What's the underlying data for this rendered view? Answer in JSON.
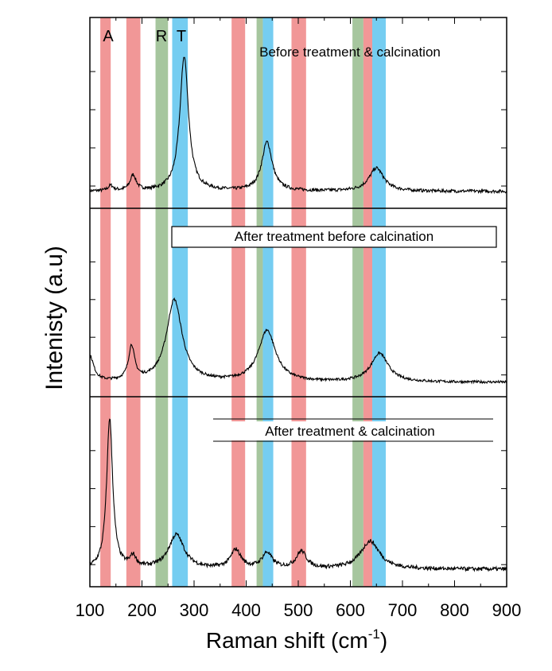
{
  "chart_data": {
    "type": "line",
    "xlabel": "Raman shift (cm",
    "xlabel_sup": "-1",
    "xlabel_close": ")",
    "ylabel": "Intenisty (a.u)",
    "xlim": [
      100,
      900
    ],
    "x_ticks": [
      "100",
      "200",
      "300",
      "400",
      "500",
      "600",
      "700",
      "800",
      "900"
    ],
    "grid": false,
    "colors": {
      "A": "#f08c8c",
      "R": "#9cc094",
      "T": "#66c8f0",
      "line": "#000000"
    },
    "band_labels": [
      "A",
      "R",
      "T"
    ],
    "bands": [
      {
        "phase": "A",
        "from": 120,
        "to": 140
      },
      {
        "phase": "A",
        "from": 170,
        "to": 197
      },
      {
        "phase": "R",
        "from": 226,
        "to": 250
      },
      {
        "phase": "T",
        "from": 258,
        "to": 288
      },
      {
        "phase": "A",
        "from": 372,
        "to": 398
      },
      {
        "phase": "R",
        "from": 420,
        "to": 432
      },
      {
        "phase": "T",
        "from": 432,
        "to": 452
      },
      {
        "phase": "A",
        "from": 487,
        "to": 515
      },
      {
        "phase": "R",
        "from": 604,
        "to": 625
      },
      {
        "phase": "A",
        "from": 625,
        "to": 642
      },
      {
        "phase": "T",
        "from": 642,
        "to": 668
      }
    ],
    "panels": [
      {
        "label": "Before treatment & calcination",
        "label_box": false,
        "yrange": [
          0,
          1
        ],
        "peaks": [
          {
            "x": 140,
            "h": 0.04,
            "w": 6
          },
          {
            "x": 183,
            "h": 0.12,
            "w": 7
          },
          {
            "x": 281,
            "h": 1.05,
            "w": 10
          },
          {
            "x": 440,
            "h": 0.38,
            "w": 12
          },
          {
            "x": 650,
            "h": 0.18,
            "w": 17
          }
        ],
        "baseline": 0.02
      },
      {
        "label": "After treatment before calcination",
        "label_box": true,
        "yrange": [
          0,
          1
        ],
        "peaks": [
          {
            "x": 100,
            "h": 0.25,
            "w": 9
          },
          {
            "x": 180,
            "h": 0.33,
            "w": 7
          },
          {
            "x": 262,
            "h": 0.8,
            "w": 18
          },
          {
            "x": 440,
            "h": 0.5,
            "w": 20
          },
          {
            "x": 656,
            "h": 0.28,
            "w": 20
          }
        ],
        "baseline": 0.0
      },
      {
        "label": "After treatment & calcination",
        "label_box": false,
        "yrange": [
          0,
          1
        ],
        "peaks": [
          {
            "x": 138,
            "h": 0.97,
            "w": 7
          },
          {
            "x": 183,
            "h": 0.07,
            "w": 7
          },
          {
            "x": 266,
            "h": 0.22,
            "w": 18
          },
          {
            "x": 380,
            "h": 0.12,
            "w": 12
          },
          {
            "x": 440,
            "h": 0.1,
            "w": 12
          },
          {
            "x": 506,
            "h": 0.11,
            "w": 12
          },
          {
            "x": 638,
            "h": 0.18,
            "w": 22
          }
        ],
        "baseline": 0.02
      }
    ]
  }
}
